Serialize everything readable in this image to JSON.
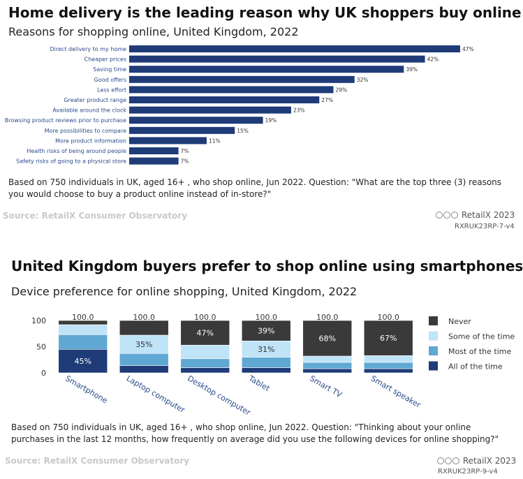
{
  "chart_data": [
    {
      "type": "bar",
      "orientation": "horizontal",
      "title": "Home delivery is the leading reason why UK shoppers buy online",
      "subtitle": "Reasons for shopping online, United Kingdom, 2022",
      "categories": [
        "Direct delivery to my home",
        "Cheaper prices",
        "Saving time",
        "Good offers",
        "Less effort",
        "Greater product range",
        "Available around the clock",
        "Browsing product reviews prior to purchase",
        "More possibilities to compare",
        "More product information",
        "Health risks of being around people",
        "Safety risks of going to a physical store"
      ],
      "values": [
        47,
        42,
        39,
        32,
        29,
        27,
        23,
        19,
        15,
        11,
        7,
        7
      ],
      "value_suffix": "%",
      "xlim": [
        0,
        47
      ],
      "note": "Based on 750 individuals in UK, aged 16+ , who shop online, Jun 2022. Question: \"What are the top three (3) reasons you would choose to buy a product online instead of in-store?\"",
      "source": "Source: RetailX Consumer Observatory",
      "brand": "RetailX 2023",
      "code": "RXRUK23RP-7-v4",
      "color": "#1f3b78"
    },
    {
      "type": "bar",
      "stacked": true,
      "title": "United Kingdom buyers prefer to shop online using smartphones",
      "subtitle": "Device preference for online shopping, United Kingdom, 2022",
      "categories": [
        "Smartphone",
        "Laptop computer",
        "Desktop computer",
        "Tablet",
        "Smart TV",
        "Smart speaker"
      ],
      "totals": [
        "100.0",
        "100.0",
        "100.0",
        "100.0",
        "100.0",
        "100.0"
      ],
      "yticks": [
        "100",
        "50",
        "0"
      ],
      "ylim": [
        0,
        100
      ],
      "legend_position": "right",
      "series": [
        {
          "name": "All of the time",
          "color": "#1f3b78",
          "values": [
            45,
            14,
            10,
            10,
            8,
            8
          ]
        },
        {
          "name": "Most of the time",
          "color": "#5fa8d3",
          "values": [
            28,
            23,
            17,
            20,
            12,
            12
          ]
        },
        {
          "name": "Some of the time",
          "color": "#bfe3f7",
          "values": [
            19,
            35,
            26,
            31,
            12,
            13
          ]
        },
        {
          "name": "Never",
          "color": "#3a3a3a",
          "values": [
            8,
            28,
            47,
            39,
            68,
            67
          ]
        }
      ],
      "labels": [
        {
          "series": "All of the time",
          "category": "Smartphone",
          "text": "45%"
        },
        {
          "series": "Some of the time",
          "category": "Laptop computer",
          "text": "35%"
        },
        {
          "series": "Never",
          "category": "Desktop computer",
          "text": "47%"
        },
        {
          "series": "Never",
          "category": "Tablet",
          "text": "39%"
        },
        {
          "series": "Some of the time",
          "category": "Tablet",
          "text": "31%"
        },
        {
          "series": "Never",
          "category": "Smart TV",
          "text": "68%"
        },
        {
          "series": "Never",
          "category": "Smart speaker",
          "text": "67%"
        }
      ],
      "note": "Based on 750 individuals in UK, aged 16+ , who shop online, Jun 2022. Question: \"Thinking about your online purchases in the last 12 months, how frequently on average did you use the following devices for online shopping?\"",
      "source": "Source: RetailX Consumer Observatory",
      "brand": "RetailX 2023",
      "code": "RXRUK23RP-9-v4"
    }
  ]
}
